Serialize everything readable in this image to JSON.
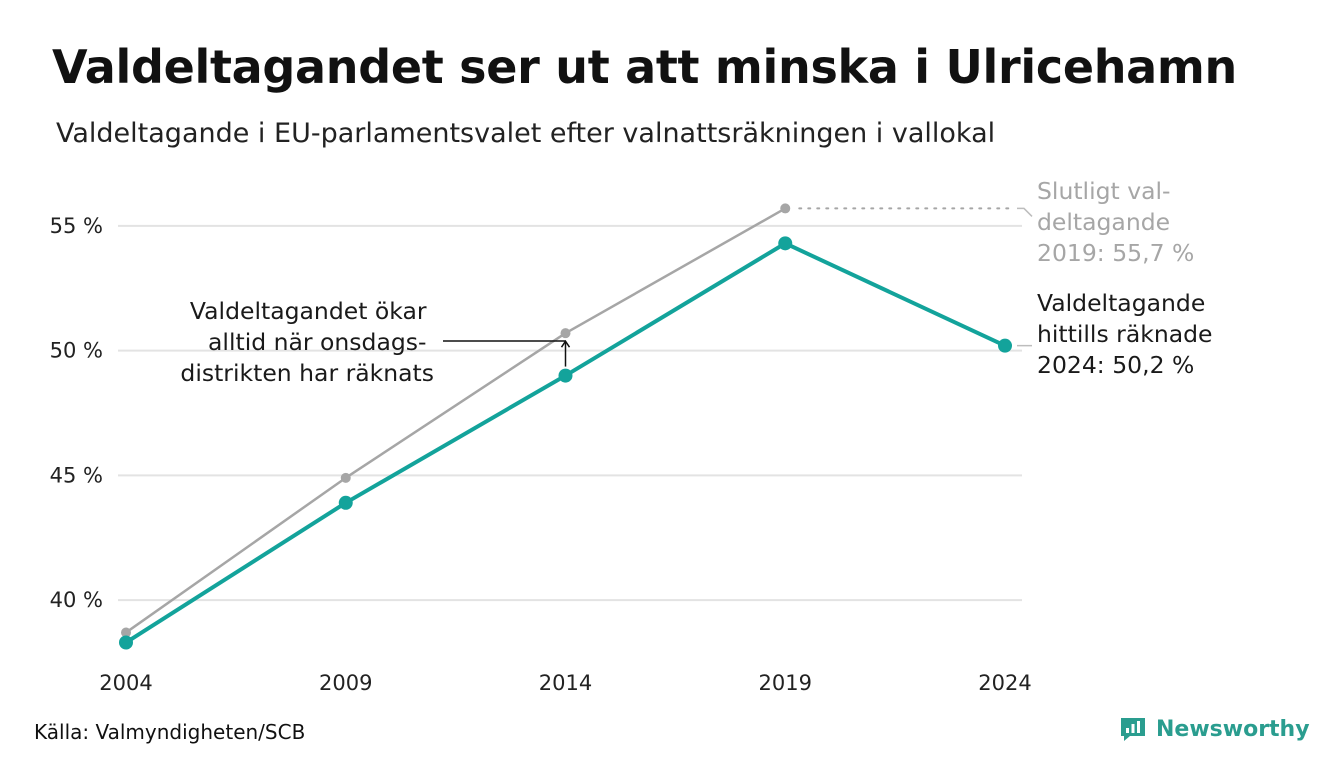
{
  "title": "Valdeltagandet ser ut att minska i Ulricehamn",
  "subtitle": "Valdeltagande i EU-parlamentsvalet efter valnattsräkningen i vallokal",
  "source": "Källa: Valmyndigheten/SCB",
  "brand": "Newsworthy",
  "colors": {
    "teal": "#13a39b",
    "grey": "#a6a6a6",
    "grid": "#e3e3e3",
    "text": "#1a1a1a"
  },
  "chart_data": {
    "type": "line",
    "x": [
      2004,
      2009,
      2014,
      2019,
      2024
    ],
    "x_tick_labels": [
      "2004",
      "2009",
      "2014",
      "2019",
      "2024"
    ],
    "y_ticks": [
      40,
      45,
      50,
      55
    ],
    "y_tick_labels": [
      "40 %",
      "45 %",
      "50 %",
      "55 %"
    ],
    "ylim": [
      38.2,
      57
    ],
    "grid": "horizontal",
    "series": [
      {
        "key": "final",
        "color": "#a6a6a6",
        "x": [
          2004,
          2009,
          2014,
          2019
        ],
        "values": [
          38.7,
          44.9,
          50.7,
          55.7
        ]
      },
      {
        "key": "election_night",
        "color": "#13a39b",
        "x": [
          2004,
          2009,
          2014,
          2019,
          2024
        ],
        "values": [
          38.3,
          43.9,
          49.0,
          54.3,
          50.2
        ]
      }
    ],
    "annotations": {
      "final_2019": [
        "Slutligt val-",
        "deltagande",
        "2019: 55,7 %"
      ],
      "current_2024": [
        "Valdeltagande",
        "hittills räknade",
        "2024: 50,2 %"
      ],
      "increase_note": [
        "Valdeltagandet ökar",
        "alltid när onsdags-",
        "distrikten har räknats"
      ]
    }
  }
}
